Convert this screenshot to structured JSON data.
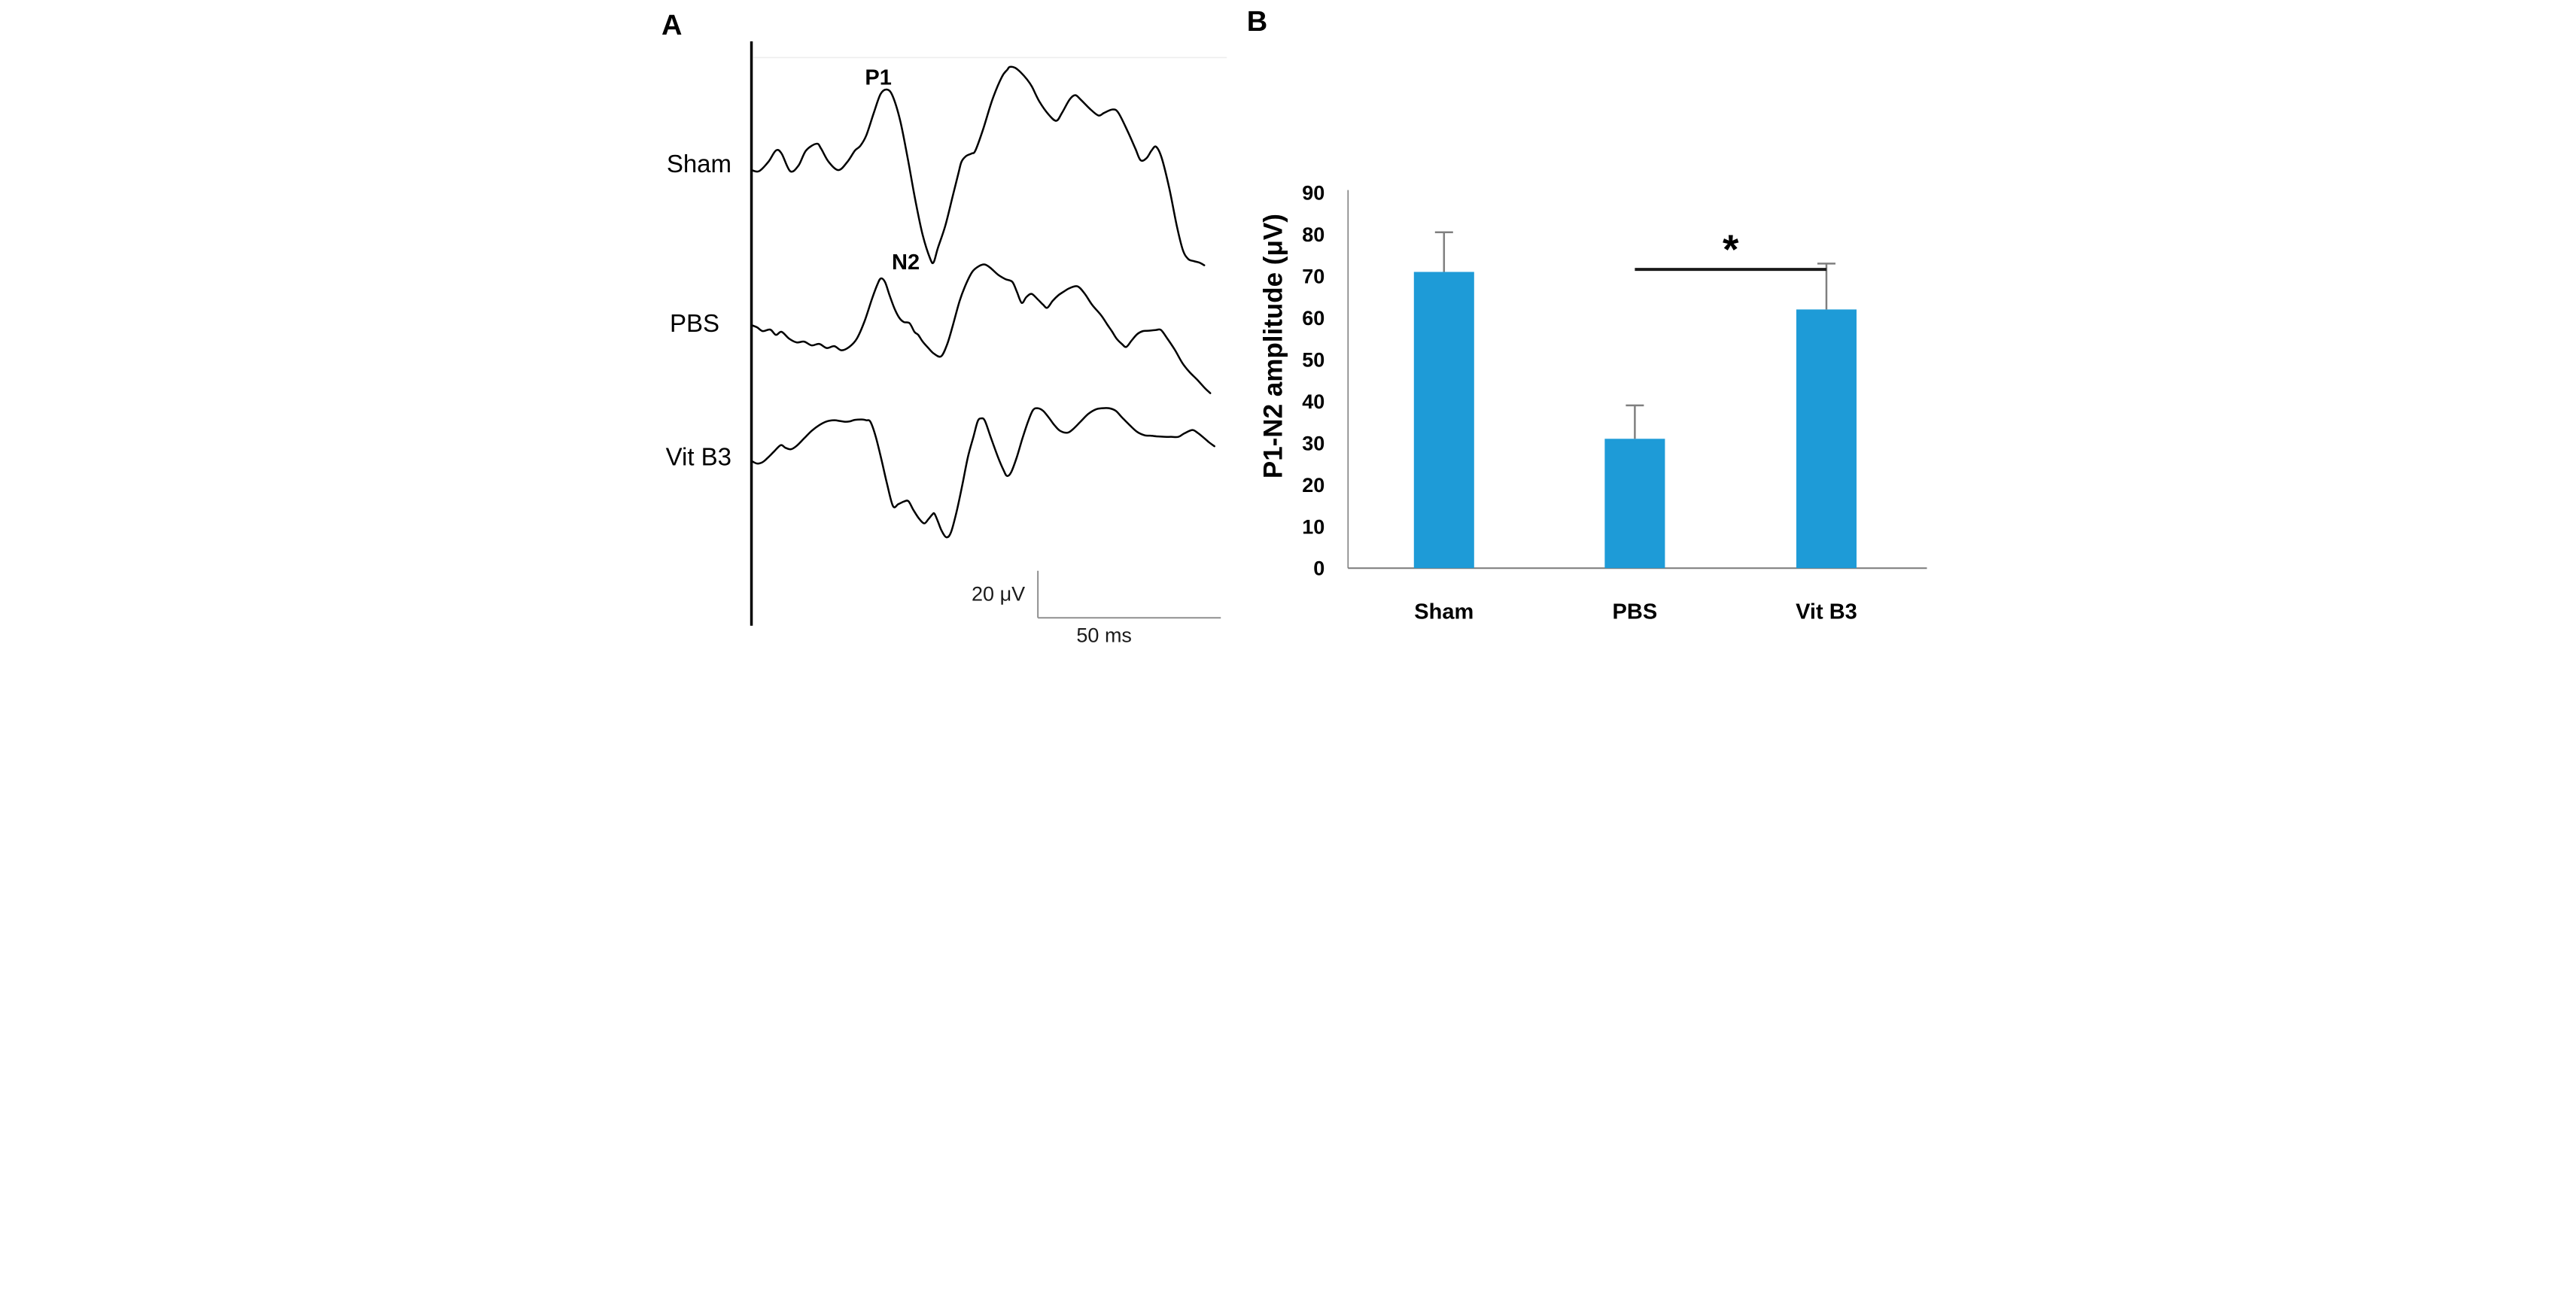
{
  "figure": {
    "panel_a": {
      "panel_label": "A",
      "peak_labels": {
        "p1": "P1",
        "n2": "N2"
      },
      "scale_bar": {
        "vertical_label": "20 μV",
        "horizontal_label": "50 ms"
      },
      "traces": [
        {
          "label": "Sham",
          "points": [
            [
              285,
              452
            ],
            [
              305,
              455
            ],
            [
              330,
              430
            ],
            [
              350,
              400
            ],
            [
              365,
              408
            ],
            [
              388,
              455
            ],
            [
              410,
              440
            ],
            [
              430,
              400
            ],
            [
              458,
              382
            ],
            [
              470,
              395
            ],
            [
              490,
              430
            ],
            [
              516,
              452
            ],
            [
              540,
              430
            ],
            [
              560,
              400
            ],
            [
              574,
              388
            ],
            [
              590,
              360
            ],
            [
              610,
              300
            ],
            [
              628,
              250
            ],
            [
              645,
              238
            ],
            [
              660,
              255
            ],
            [
              680,
              320
            ],
            [
              700,
              420
            ],
            [
              720,
              530
            ],
            [
              740,
              625
            ],
            [
              760,
              688
            ],
            [
              769,
              697
            ],
            [
              780,
              660
            ],
            [
              800,
              600
            ],
            [
              820,
              520
            ],
            [
              835,
              460
            ],
            [
              843,
              430
            ],
            [
              855,
              415
            ],
            [
              870,
              408
            ],
            [
              880,
              400
            ],
            [
              900,
              345
            ],
            [
              925,
              265
            ],
            [
              950,
              205
            ],
            [
              965,
              185
            ],
            [
              971,
              178
            ],
            [
              985,
              180
            ],
            [
              1000,
              192
            ],
            [
              1017,
              211
            ],
            [
              1030,
              230
            ],
            [
              1050,
              270
            ],
            [
              1075,
              305
            ],
            [
              1095,
              321
            ],
            [
              1110,
              300
            ],
            [
              1130,
              265
            ],
            [
              1145,
              253
            ],
            [
              1160,
              265
            ],
            [
              1185,
              290
            ],
            [
              1207,
              307
            ],
            [
              1222,
              300
            ],
            [
              1245,
              291
            ],
            [
              1260,
              300
            ],
            [
              1285,
              350
            ],
            [
              1305,
              395
            ],
            [
              1319,
              426
            ],
            [
              1335,
              420
            ],
            [
              1348,
              400
            ],
            [
              1360,
              390
            ],
            [
              1375,
              420
            ],
            [
              1395,
              500
            ],
            [
              1415,
              600
            ],
            [
              1431,
              664
            ],
            [
              1445,
              688
            ],
            [
              1460,
              694
            ],
            [
              1475,
              698
            ],
            [
              1488,
              705
            ]
          ]
        },
        {
          "label": "PBS",
          "points": [
            [
              285,
              864
            ],
            [
              300,
              870
            ],
            [
              315,
              880
            ],
            [
              335,
              876
            ],
            [
              350,
              890
            ],
            [
              365,
              882
            ],
            [
              385,
              900
            ],
            [
              405,
              910
            ],
            [
              425,
              908
            ],
            [
              445,
              918
            ],
            [
              465,
              914
            ],
            [
              485,
              925
            ],
            [
              505,
              920
            ],
            [
              524,
              931
            ],
            [
              545,
              922
            ],
            [
              565,
              900
            ],
            [
              585,
              855
            ],
            [
              605,
              795
            ],
            [
              620,
              755
            ],
            [
              629,
              740
            ],
            [
              640,
              750
            ],
            [
              652,
              785
            ],
            [
              665,
              820
            ],
            [
              678,
              845
            ],
            [
              690,
              856
            ],
            [
              705,
              859
            ],
            [
              718,
              882
            ],
            [
              728,
              890
            ],
            [
              740,
              908
            ],
            [
              755,
              925
            ],
            [
              770,
              940
            ],
            [
              789,
              947
            ],
            [
              805,
              915
            ],
            [
              820,
              865
            ],
            [
              838,
              800
            ],
            [
              855,
              755
            ],
            [
              872,
              722
            ],
            [
              890,
              707
            ],
            [
              905,
              703
            ],
            [
              920,
              712
            ],
            [
              940,
              730
            ],
            [
              960,
              742
            ],
            [
              978,
              749
            ],
            [
              990,
              775
            ],
            [
              1003,
              805
            ],
            [
              1015,
              790
            ],
            [
              1029,
              781
            ],
            [
              1045,
              795
            ],
            [
              1060,
              810
            ],
            [
              1071,
              818
            ],
            [
              1085,
              800
            ],
            [
              1100,
              785
            ],
            [
              1115,
              775
            ],
            [
              1130,
              766
            ],
            [
              1151,
              761
            ],
            [
              1170,
              780
            ],
            [
              1190,
              810
            ],
            [
              1214,
              838
            ],
            [
              1230,
              862
            ],
            [
              1243,
              881
            ],
            [
              1255,
              900
            ],
            [
              1270,
              915
            ],
            [
              1281,
              922
            ],
            [
              1295,
              905
            ],
            [
              1310,
              888
            ],
            [
              1325,
              880
            ],
            [
              1340,
              879
            ],
            [
              1360,
              877
            ],
            [
              1373,
              877
            ],
            [
              1390,
              900
            ],
            [
              1410,
              930
            ],
            [
              1430,
              965
            ],
            [
              1449,
              989
            ],
            [
              1470,
              1010
            ],
            [
              1490,
              1032
            ],
            [
              1504,
              1045
            ]
          ]
        },
        {
          "label": "Vit B3",
          "points": [
            [
              285,
              1225
            ],
            [
              300,
              1232
            ],
            [
              315,
              1228
            ],
            [
              330,
              1215
            ],
            [
              345,
              1200
            ],
            [
              363,
              1183
            ],
            [
              375,
              1190
            ],
            [
              390,
              1194
            ],
            [
              405,
              1185
            ],
            [
              425,
              1165
            ],
            [
              445,
              1145
            ],
            [
              465,
              1130
            ],
            [
              485,
              1120
            ],
            [
              505,
              1117
            ],
            [
              520,
              1119
            ],
            [
              535,
              1121
            ],
            [
              546,
              1120
            ],
            [
              560,
              1116
            ],
            [
              579,
              1115
            ],
            [
              590,
              1117
            ],
            [
              601,
              1121
            ],
            [
              615,
              1160
            ],
            [
              630,
              1220
            ],
            [
              645,
              1285
            ],
            [
              661,
              1345
            ],
            [
              675,
              1340
            ],
            [
              690,
              1333
            ],
            [
              702,
              1332
            ],
            [
              715,
              1355
            ],
            [
              730,
              1378
            ],
            [
              744,
              1391
            ],
            [
              755,
              1380
            ],
            [
              765,
              1368
            ],
            [
              771,
              1365
            ],
            [
              780,
              1385
            ],
            [
              790,
              1410
            ],
            [
              803,
              1428
            ],
            [
              815,
              1415
            ],
            [
              830,
              1360
            ],
            [
              845,
              1290
            ],
            [
              860,
              1215
            ],
            [
              875,
              1160
            ],
            [
              886,
              1120
            ],
            [
              895,
              1112
            ],
            [
              905,
              1118
            ],
            [
              920,
              1160
            ],
            [
              940,
              1215
            ],
            [
              955,
              1250
            ],
            [
              964,
              1265
            ],
            [
              975,
              1255
            ],
            [
              990,
              1215
            ],
            [
              1005,
              1165
            ],
            [
              1020,
              1120
            ],
            [
              1033,
              1090
            ],
            [
              1045,
              1085
            ],
            [
              1060,
              1092
            ],
            [
              1075,
              1110
            ],
            [
              1090,
              1130
            ],
            [
              1105,
              1145
            ],
            [
              1125,
              1150
            ],
            [
              1140,
              1140
            ],
            [
              1160,
              1120
            ],
            [
              1180,
              1100
            ],
            [
              1200,
              1088
            ],
            [
              1217,
              1085
            ],
            [
              1235,
              1085
            ],
            [
              1253,
              1092
            ],
            [
              1270,
              1110
            ],
            [
              1290,
              1130
            ],
            [
              1310,
              1148
            ],
            [
              1330,
              1157
            ],
            [
              1345,
              1158
            ],
            [
              1365,
              1160
            ],
            [
              1382,
              1161
            ],
            [
              1400,
              1161
            ],
            [
              1419,
              1161
            ],
            [
              1435,
              1152
            ],
            [
              1456,
              1143
            ],
            [
              1470,
              1150
            ],
            [
              1485,
              1162
            ],
            [
              1500,
              1175
            ],
            [
              1515,
              1186
            ]
          ]
        }
      ]
    },
    "panel_b": {
      "panel_label": "B",
      "y_axis_title": "P1-N2 amplitude (μV)"
    }
  },
  "chart_data": {
    "type": "bar",
    "title": "",
    "categories": [
      "Sham",
      "PBS",
      "Vit B3"
    ],
    "values": [
      71,
      31,
      62
    ],
    "error_up": [
      9.5,
      8,
      11
    ],
    "xlabel": "",
    "ylabel": "P1-N2 amplitude (μV)",
    "ylim": [
      0,
      90
    ],
    "ytick_interval": 10,
    "grid": false,
    "legend": "none",
    "bar_color": "#1E9BD7",
    "error_bar_color": "#7f7f7f",
    "axis_color": "#7a7a7a",
    "significance": {
      "between": [
        "PBS",
        "Vit B3"
      ],
      "label": "*"
    }
  },
  "colors": {
    "background": "#ffffff",
    "trace_stroke": "#000000",
    "scale_bar": "#8f8f8f"
  }
}
